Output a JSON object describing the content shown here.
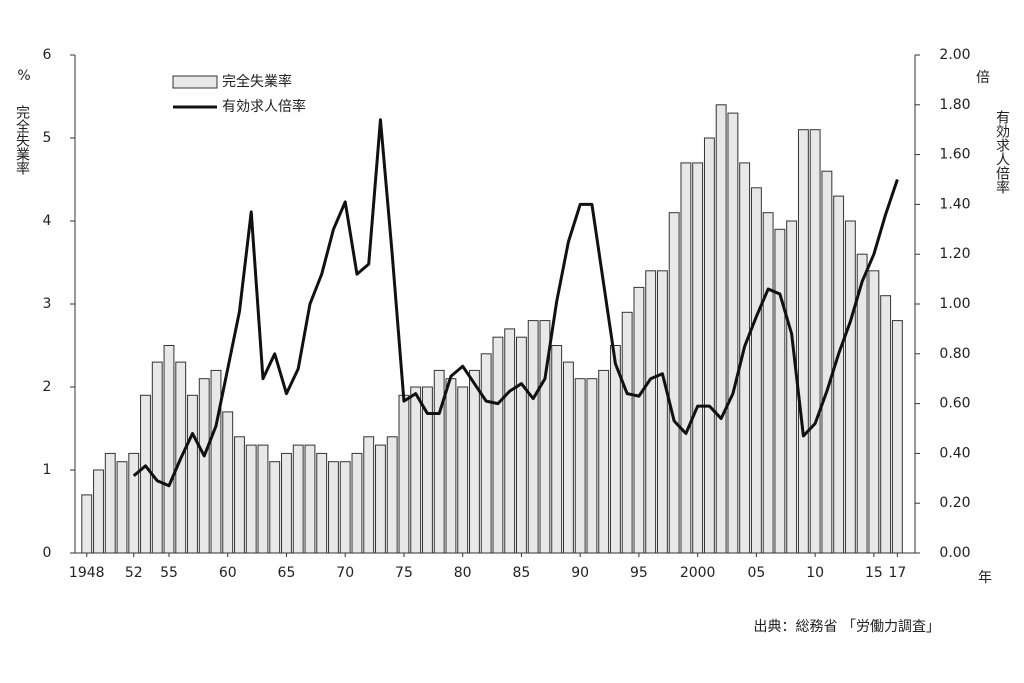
{
  "chart_data": {
    "type": "combo",
    "y_label": "%",
    "y_title": "完全失業率",
    "y2_label": "倍",
    "y2_title": "有効求人倍率",
    "x_label": "年",
    "source": "出典：総務省 「労働力調査」",
    "x": [
      1948,
      1949,
      1950,
      1951,
      1952,
      1953,
      1954,
      1955,
      1956,
      1957,
      1958,
      1959,
      1960,
      1961,
      1962,
      1963,
      1964,
      1965,
      1966,
      1967,
      1968,
      1969,
      1970,
      1971,
      1972,
      1973,
      1974,
      1975,
      1976,
      1977,
      1978,
      1979,
      1980,
      1981,
      1982,
      1983,
      1984,
      1985,
      1986,
      1987,
      1988,
      1989,
      1990,
      1991,
      1992,
      1993,
      1994,
      1995,
      1996,
      1997,
      1998,
      1999,
      2000,
      2001,
      2002,
      2003,
      2004,
      2005,
      2006,
      2007,
      2008,
      2009,
      2010,
      2011,
      2012,
      2013,
      2014,
      2015,
      2016,
      2017
    ],
    "xlim": [
      1947,
      2018.5
    ],
    "xticks": [
      {
        "value": 1948,
        "label": "1948"
      },
      {
        "value": 1952,
        "label": "52"
      },
      {
        "value": 1955,
        "label": "55"
      },
      {
        "value": 1960,
        "label": "60"
      },
      {
        "value": 1965,
        "label": "65"
      },
      {
        "value": 1970,
        "label": "70"
      },
      {
        "value": 1975,
        "label": "75"
      },
      {
        "value": 1980,
        "label": "80"
      },
      {
        "value": 1985,
        "label": "85"
      },
      {
        "value": 1990,
        "label": "90"
      },
      {
        "value": 1995,
        "label": "95"
      },
      {
        "value": 2000,
        "label": "2000"
      },
      {
        "value": 2005,
        "label": "05"
      },
      {
        "value": 2010,
        "label": "10"
      },
      {
        "value": 2015,
        "label": "15"
      },
      {
        "value": 2017,
        "label": "17"
      }
    ],
    "ylim": [
      0,
      6
    ],
    "yticks": [
      0,
      1,
      2,
      3,
      4,
      5,
      6
    ],
    "y2lim": [
      0,
      2
    ],
    "y2ticks": [
      {
        "value": 0,
        "label": "0.00"
      },
      {
        "value": 0.2,
        "label": "0.20"
      },
      {
        "value": 0.4,
        "label": "0.40"
      },
      {
        "value": 0.6,
        "label": "0.60"
      },
      {
        "value": 0.8,
        "label": "0.80"
      },
      {
        "value": 1,
        "label": "1.00"
      },
      {
        "value": 1.2,
        "label": "1.20"
      },
      {
        "value": 1.4,
        "label": "1.40"
      },
      {
        "value": 1.6,
        "label": "1.60"
      },
      {
        "value": 1.8,
        "label": "1.80"
      },
      {
        "value": 2,
        "label": "2.00"
      }
    ],
    "series": [
      {
        "name": "完全失業率",
        "type": "bar",
        "color": "#e8e8e8",
        "values": [
          0.7,
          1.0,
          1.2,
          1.1,
          1.2,
          1.9,
          2.3,
          2.5,
          2.3,
          1.9,
          2.1,
          2.2,
          1.7,
          1.4,
          1.3,
          1.3,
          1.1,
          1.2,
          1.3,
          1.3,
          1.2,
          1.1,
          1.1,
          1.2,
          1.4,
          1.3,
          1.4,
          1.9,
          2.0,
          2.0,
          2.2,
          2.1,
          2.0,
          2.2,
          2.4,
          2.6,
          2.7,
          2.6,
          2.8,
          2.8,
          2.5,
          2.3,
          2.1,
          2.1,
          2.2,
          2.5,
          2.9,
          3.2,
          3.4,
          3.4,
          4.1,
          4.7,
          4.7,
          5.0,
          5.4,
          5.3,
          4.7,
          4.4,
          4.1,
          3.9,
          4.0,
          5.1,
          5.1,
          4.6,
          4.3,
          4.0,
          3.6,
          3.4,
          3.1,
          2.8
        ]
      },
      {
        "name": "有効求人倍率",
        "type": "line",
        "axis": "y2",
        "color": "#111111",
        "values": [
          null,
          null,
          null,
          null,
          0.31,
          0.35,
          0.29,
          0.27,
          0.38,
          0.48,
          0.39,
          0.51,
          0.74,
          0.97,
          1.37,
          0.7,
          0.8,
          0.64,
          0.74,
          1.0,
          1.12,
          1.3,
          1.41,
          1.12,
          1.16,
          1.74,
          1.2,
          0.61,
          0.64,
          0.56,
          0.56,
          0.71,
          0.75,
          0.68,
          0.61,
          0.6,
          0.65,
          0.68,
          0.62,
          0.7,
          1.01,
          1.25,
          1.4,
          1.4,
          1.08,
          0.76,
          0.64,
          0.63,
          0.7,
          0.72,
          0.53,
          0.48,
          0.59,
          0.59,
          0.54,
          0.64,
          0.83,
          0.95,
          1.06,
          1.04,
          0.88,
          0.47,
          0.52,
          0.65,
          0.8,
          0.93,
          1.09,
          1.2,
          1.36,
          1.5
        ]
      }
    ]
  }
}
